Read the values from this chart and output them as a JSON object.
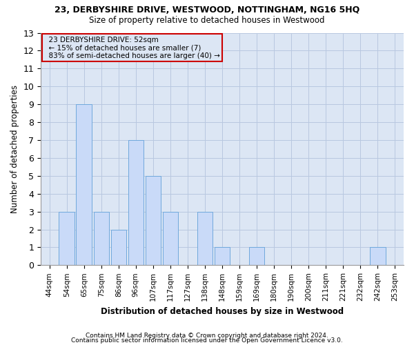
{
  "title1": "23, DERBYSHIRE DRIVE, WESTWOOD, NOTTINGHAM, NG16 5HQ",
  "title2": "Size of property relative to detached houses in Westwood",
  "xlabel": "Distribution of detached houses by size in Westwood",
  "ylabel": "Number of detached properties",
  "footnote1": "Contains HM Land Registry data © Crown copyright and database right 2024.",
  "footnote2": "Contains public sector information licensed under the Open Government Licence v3.0.",
  "annotation_line1": "  23 DERBYSHIRE DRIVE: 52sqm",
  "annotation_line2": "  ← 15% of detached houses are smaller (7)",
  "annotation_line3": "  83% of semi-detached houses are larger (40) →",
  "categories": [
    "44sqm",
    "54sqm",
    "65sqm",
    "75sqm",
    "86sqm",
    "96sqm",
    "107sqm",
    "117sqm",
    "127sqm",
    "138sqm",
    "148sqm",
    "159sqm",
    "169sqm",
    "180sqm",
    "190sqm",
    "200sqm",
    "211sqm",
    "221sqm",
    "232sqm",
    "242sqm",
    "253sqm"
  ],
  "values": [
    0,
    3,
    9,
    3,
    2,
    7,
    5,
    3,
    0,
    3,
    1,
    0,
    1,
    0,
    0,
    0,
    0,
    0,
    0,
    1,
    0
  ],
  "bar_color": "#c9daf8",
  "bar_edge_color": "#6fa8dc",
  "ylim": [
    0,
    13
  ],
  "yticks": [
    0,
    1,
    2,
    3,
    4,
    5,
    6,
    7,
    8,
    9,
    10,
    11,
    12,
    13
  ],
  "grid_color": "#b8c8e0",
  "annotation_box_color": "#cc0000",
  "bg_color": "#ffffff",
  "plot_bg_color": "#dce6f4"
}
